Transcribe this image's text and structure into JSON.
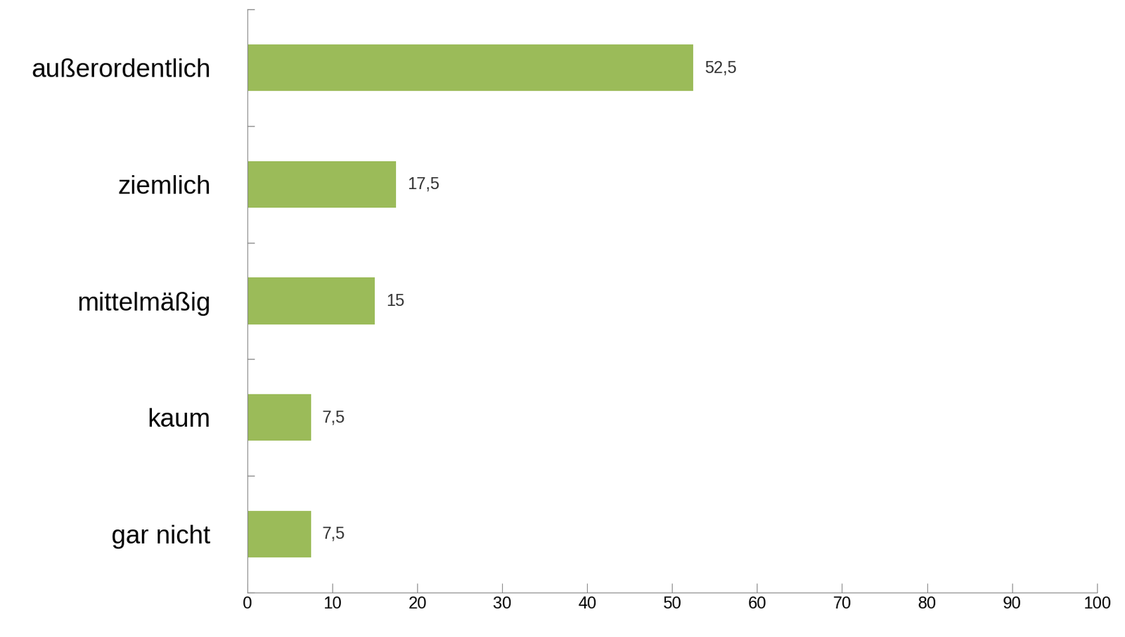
{
  "chart_data": {
    "type": "bar",
    "orientation": "horizontal",
    "categories": [
      "außerordentlich",
      "ziemlich",
      "mittelmäßig",
      "kaum",
      "gar nicht"
    ],
    "values": [
      52.5,
      17.5,
      15,
      7.5,
      7.5
    ],
    "value_labels": [
      "52,5",
      "17,5",
      "15",
      "7,5",
      "7,5"
    ],
    "color": "#9bbb59",
    "xlim": [
      0,
      100
    ],
    "xticks": [
      0,
      10,
      20,
      30,
      40,
      50,
      60,
      70,
      80,
      90,
      100
    ],
    "grid": false,
    "data_labels": true
  }
}
